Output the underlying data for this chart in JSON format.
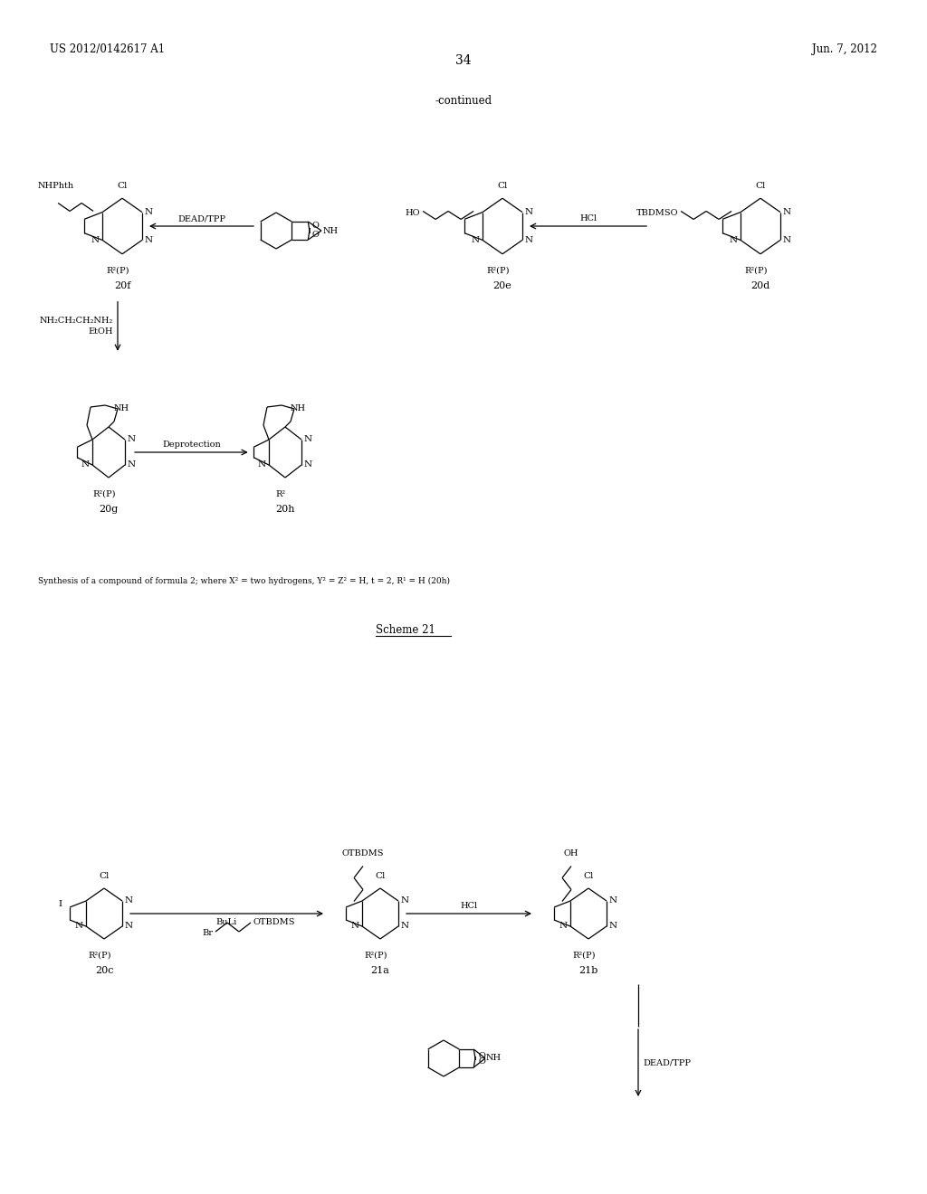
{
  "bg_color": "#ffffff",
  "page_width": 10.24,
  "page_height": 13.2,
  "header_left": "US 2012/0142617 A1",
  "header_right": "Jun. 7, 2012",
  "page_number": "34",
  "continued_label": "-continued",
  "scheme21_label": "Scheme 21",
  "synthesis_note": "Synthesis of a compound of formula 2; where X² = two hydrogens, Y² = Z² = H, t = 2, R¹ = H (20h)"
}
